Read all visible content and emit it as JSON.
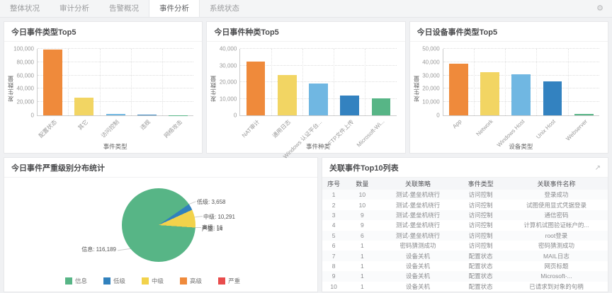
{
  "nav": {
    "tabs": [
      {
        "label": "整体状况",
        "active": false
      },
      {
        "label": "审计分析",
        "active": false
      },
      {
        "label": "告警概况",
        "active": false
      },
      {
        "label": "事件分析",
        "active": true
      },
      {
        "label": "系统状态",
        "active": false
      }
    ],
    "gear_icon": "settings-gear"
  },
  "chart_data": [
    {
      "type": "bar",
      "title": "今日事件类型Top5",
      "xlabel": "事件类型",
      "ylabel": "发生数量",
      "ylim": [
        0,
        100000
      ],
      "yticks": [
        "0",
        "20,000",
        "40,000",
        "60,000",
        "80,000",
        "100,000"
      ],
      "categories": [
        "配置状态",
        "其它",
        "访问控制",
        "违规",
        "网络攻击"
      ],
      "values": [
        98500,
        26500,
        2500,
        1000,
        300
      ],
      "bar_colors": [
        "#ef8a3b",
        "#f2d563",
        "#70b7e2",
        "#3382c0",
        "#57b586"
      ],
      "grid": true,
      "legend_position": "none"
    },
    {
      "type": "bar",
      "title": "今日事件种类Top5",
      "xlabel": "事件种类",
      "ylabel": "发生数量",
      "ylim": [
        0,
        40000
      ],
      "yticks": [
        "0",
        "10,000",
        "20,000",
        "30,000",
        "40,000"
      ],
      "categories": [
        "NAT审计",
        "通用日志",
        "Windows 认证平台...",
        "FTP文件上传",
        "Microsoft-Wi..."
      ],
      "values": [
        32300,
        24300,
        19000,
        12000,
        10100
      ],
      "bar_colors": [
        "#ef8a3b",
        "#f2d563",
        "#70b7e2",
        "#3382c0",
        "#57b586"
      ],
      "grid": true,
      "legend_position": "none"
    },
    {
      "type": "bar",
      "title": "今日设备事件类型Top5",
      "xlabel": "设备类型",
      "ylabel": "发生数量",
      "ylim": [
        0,
        50000
      ],
      "yticks": [
        "0",
        "10,000",
        "20,000",
        "30,000",
        "40,000",
        "50,000"
      ],
      "categories": [
        "App",
        "Network",
        "Windows Host",
        "Unix Host",
        "Webserver"
      ],
      "values": [
        38600,
        32300,
        30900,
        25400,
        1000
      ],
      "bar_colors": [
        "#ef8a3b",
        "#f2d563",
        "#70b7e2",
        "#3382c0",
        "#57b586"
      ],
      "grid": true,
      "legend_position": "none"
    },
    {
      "type": "pie",
      "title": "今日事件严重级别分布统计",
      "slices": [
        {
          "name": "信息",
          "value": 116189,
          "color": "#57b586"
        },
        {
          "name": "低级",
          "value": 3658,
          "color": "#3181bd"
        },
        {
          "name": "中级",
          "value": 10291,
          "color": "#f2d24b"
        },
        {
          "name": "高级",
          "value": 16,
          "color": "#ef8a3b"
        },
        {
          "name": "严重",
          "value": 14,
          "color": "#e84c4c"
        }
      ],
      "legend_position": "bottom"
    },
    {
      "type": "table",
      "title": "关联事件Top10列表",
      "share_icon": "export-arrow",
      "columns": [
        "序号",
        "数量",
        "关联策略",
        "事件类型",
        "关联事件名称"
      ],
      "rows": [
        [
          "1",
          "10",
          "测试-堡垒机绕行",
          "访问控制",
          "登录成功"
        ],
        [
          "2",
          "10",
          "测试-堡垒机绕行",
          "访问控制",
          "试图使用显式凭据登录"
        ],
        [
          "3",
          "9",
          "测试-堡垒机绕行",
          "访问控制",
          "通信密码"
        ],
        [
          "4",
          "9",
          "测试-堡垒机绕行",
          "访问控制",
          "计算机试图验证帐户的..."
        ],
        [
          "5",
          "6",
          "测试-堡垒机绕行",
          "访问控制",
          "root登录"
        ],
        [
          "6",
          "1",
          "密码猜测成功",
          "访问控制",
          "密码猜测成功"
        ],
        [
          "7",
          "1",
          "设备关机",
          "配置状态",
          "MAIL日志"
        ],
        [
          "8",
          "1",
          "设备关机",
          "配置状态",
          "网页标题"
        ],
        [
          "9",
          "1",
          "设备关机",
          "配置状态",
          "Microsoft-..."
        ],
        [
          "10",
          "1",
          "设备关机",
          "配置状态",
          "已请求到对象的句柄"
        ]
      ]
    }
  ]
}
